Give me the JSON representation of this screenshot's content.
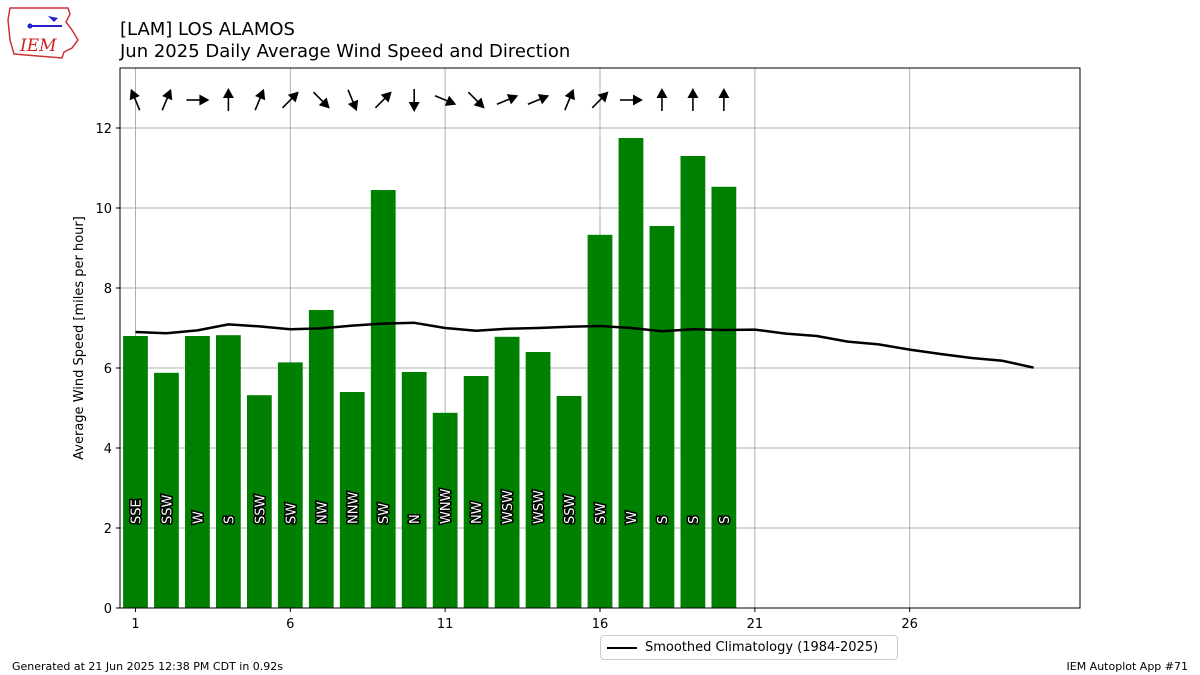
{
  "header": {
    "title_line1": "[LAM] LOS ALAMOS",
    "title_line2": "Jun 2025 Daily Average Wind Speed and Direction"
  },
  "logo": {
    "text": "IEM"
  },
  "footer": {
    "left": "Generated at 21 Jun 2025 12:38 PM CDT in 0.92s",
    "right": "IEM Autoplot App #71"
  },
  "legend": {
    "label": "Smoothed Climatology (1984-2025)"
  },
  "colors": {
    "bar": "#008000",
    "climo_line": "#000000",
    "grid": "#b0b0b0"
  },
  "chart_data": {
    "type": "bar",
    "ylabel": "Average Wind Speed [miles per hour]",
    "ylim": [
      0,
      13.5
    ],
    "xlim": [
      0.5,
      31.5
    ],
    "x_ticks": [
      1,
      6,
      11,
      16,
      21,
      26
    ],
    "y_ticks": [
      0,
      2,
      4,
      6,
      8,
      10,
      12
    ],
    "grid": true,
    "legend_position": "bottom-center",
    "days": [
      1,
      2,
      3,
      4,
      5,
      6,
      7,
      8,
      9,
      10,
      11,
      12,
      13,
      14,
      15,
      16,
      17,
      18,
      19,
      20
    ],
    "values": [
      6.8,
      5.88,
      6.8,
      6.82,
      5.32,
      6.14,
      7.45,
      5.4,
      10.45,
      5.9,
      4.88,
      5.8,
      6.78,
      6.4,
      5.3,
      9.33,
      11.75,
      9.55,
      11.3,
      10.53
    ],
    "directions": [
      "SSE",
      "SSW",
      "W",
      "S",
      "SSW",
      "SW",
      "NW",
      "NNW",
      "SW",
      "N",
      "WNW",
      "NW",
      "WSW",
      "WSW",
      "SSW",
      "SW",
      "W",
      "S",
      "S",
      "S"
    ],
    "climatology": {
      "name": "Smoothed Climatology (1984-2025)",
      "x": [
        1,
        2,
        3,
        4,
        5,
        6,
        7,
        8,
        9,
        10,
        11,
        12,
        13,
        14,
        15,
        16,
        17,
        18,
        19,
        20,
        21,
        22,
        23,
        24,
        25,
        26,
        27,
        28,
        29,
        30
      ],
      "y": [
        6.9,
        6.87,
        6.94,
        7.09,
        7.04,
        6.97,
        6.99,
        7.06,
        7.11,
        7.13,
        7.0,
        6.93,
        6.98,
        7.0,
        7.03,
        7.05,
        7.0,
        6.92,
        6.97,
        6.95,
        6.96,
        6.86,
        6.8,
        6.66,
        6.59,
        6.46,
        6.35,
        6.25,
        6.18,
        6.01
      ]
    }
  }
}
